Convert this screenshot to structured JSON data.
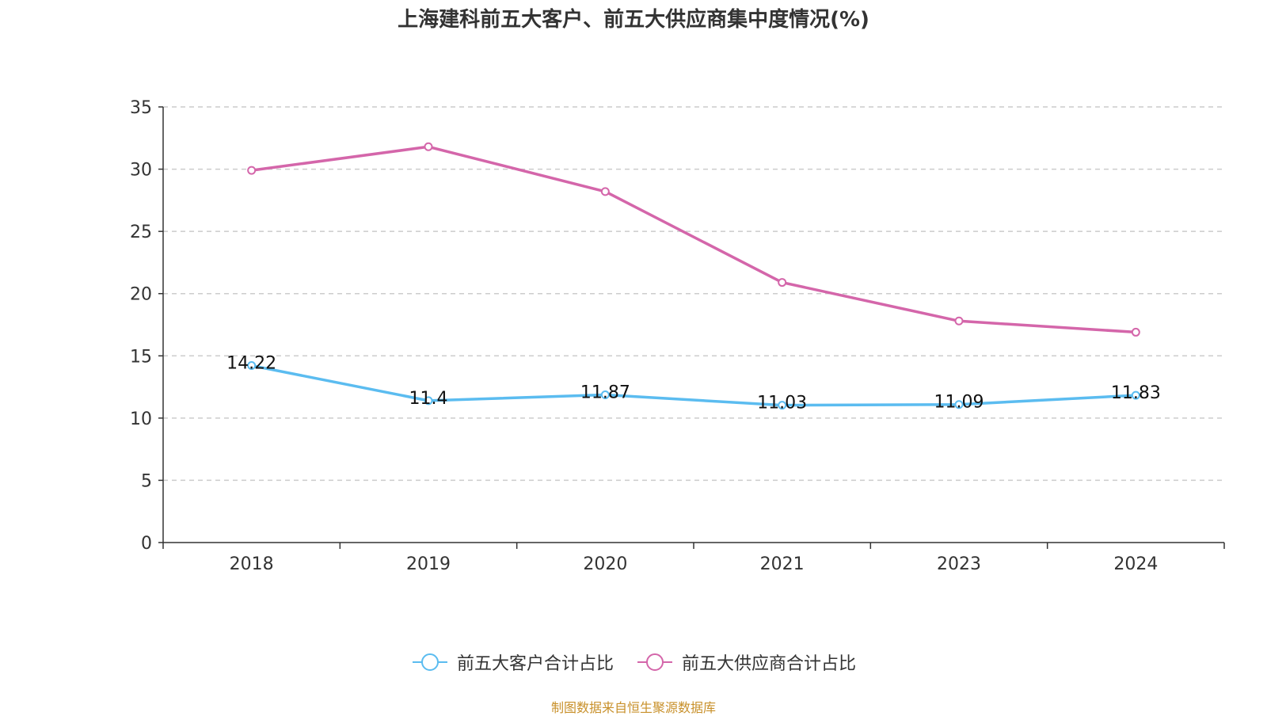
{
  "chart_data": {
    "type": "line",
    "title": "上海建科前五大客户、前五大供应商集中度情况(%)",
    "categories": [
      "2018",
      "2019",
      "2020",
      "2021",
      "2023",
      "2024"
    ],
    "ylim": [
      0,
      35
    ],
    "yticks": [
      0,
      5,
      10,
      15,
      20,
      25,
      30,
      35
    ],
    "grid": true,
    "legend_position": "bottom",
    "series": [
      {
        "name": "前五大客户合计占比",
        "color": "#5bbcf0",
        "values": [
          14.22,
          11.4,
          11.87,
          11.03,
          11.09,
          11.83
        ],
        "labels": [
          "14.22",
          "11.4",
          "11.87",
          "11.03",
          "11.09",
          "11.83"
        ],
        "show_labels": true
      },
      {
        "name": "前五大供应商合计占比",
        "color": "#d466aa",
        "values": [
          29.9,
          31.8,
          28.2,
          20.9,
          17.8,
          16.9
        ],
        "show_labels": false
      }
    ]
  },
  "source_text": "制图数据来自恒生聚源数据库"
}
